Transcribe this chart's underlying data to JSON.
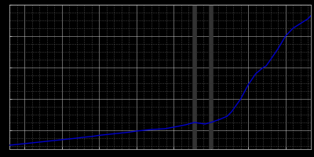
{
  "years": [
    1815,
    1820,
    1825,
    1830,
    1835,
    1840,
    1845,
    1850,
    1855,
    1860,
    1864,
    1871,
    1875,
    1880,
    1885,
    1890,
    1895,
    1900,
    1905,
    1910,
    1919,
    1925,
    1933,
    1939,
    1946,
    1950,
    1956,
    1961,
    1964,
    1970,
    1975,
    1980,
    1985,
    1987,
    1990,
    1995,
    2000,
    2005,
    2010,
    2015,
    2017
  ],
  "population": [
    1050,
    1100,
    1150,
    1200,
    1250,
    1300,
    1350,
    1400,
    1450,
    1500,
    1550,
    1620,
    1680,
    1730,
    1780,
    1830,
    1880,
    1950,
    2000,
    2050,
    2100,
    2200,
    2350,
    2500,
    2400,
    2500,
    2700,
    2900,
    3200,
    4000,
    4900,
    5600,
    6000,
    6100,
    6500,
    7200,
    8000,
    8500,
    8800,
    9100,
    9300
  ],
  "line_color": "#0000cc",
  "background_color": "#000000",
  "major_grid_color": "#cccccc",
  "minor_grid_color": "#555555",
  "special_years": [
    1939,
    1950
  ],
  "special_bar_color": "#333333",
  "xlim": [
    1815,
    2017
  ],
  "ylim": [
    800,
    10000
  ],
  "major_xtick_interval": 25,
  "minor_xtick_interval": 5,
  "major_ytick_interval": 2000,
  "minor_ytick_interval": 500,
  "figsize": [
    4.0,
    2.0
  ],
  "dpi": 100,
  "line_width": 1.0
}
